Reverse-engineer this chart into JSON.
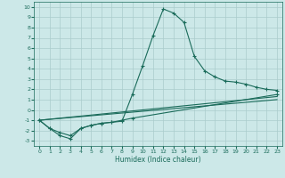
{
  "xlabel": "Humidex (Indice chaleur)",
  "bg_color": "#cce8e8",
  "grid_color": "#aacccc",
  "line_color": "#1a6b5a",
  "xlim": [
    -0.5,
    23.5
  ],
  "ylim": [
    -3.5,
    10.5
  ],
  "xticks": [
    0,
    1,
    2,
    3,
    4,
    5,
    6,
    7,
    8,
    9,
    10,
    11,
    12,
    13,
    14,
    15,
    16,
    17,
    18,
    19,
    20,
    21,
    22,
    23
  ],
  "yticks": [
    -3,
    -2,
    -1,
    0,
    1,
    2,
    3,
    4,
    5,
    6,
    7,
    8,
    9,
    10
  ],
  "series1": [
    [
      0,
      -1.0
    ],
    [
      1,
      -1.8
    ],
    [
      2,
      -2.5
    ],
    [
      3,
      -2.8
    ],
    [
      4,
      -1.8
    ],
    [
      5,
      -1.5
    ],
    [
      6,
      -1.3
    ],
    [
      7,
      -1.2
    ],
    [
      8,
      -1.1
    ],
    [
      9,
      1.5
    ],
    [
      10,
      4.3
    ],
    [
      11,
      7.2
    ],
    [
      12,
      9.8
    ],
    [
      13,
      9.4
    ],
    [
      14,
      8.5
    ],
    [
      15,
      5.2
    ],
    [
      16,
      3.8
    ],
    [
      17,
      3.2
    ],
    [
      18,
      2.8
    ],
    [
      19,
      2.7
    ],
    [
      20,
      2.5
    ],
    [
      21,
      2.2
    ],
    [
      22,
      2.0
    ],
    [
      23,
      1.9
    ]
  ],
  "series2": [
    [
      0,
      -1.0
    ],
    [
      1,
      -1.8
    ],
    [
      2,
      -2.2
    ],
    [
      3,
      -2.5
    ],
    [
      4,
      -1.8
    ],
    [
      5,
      -1.5
    ],
    [
      6,
      -1.3
    ],
    [
      7,
      -1.2
    ],
    [
      8,
      -1.0
    ],
    [
      9,
      -0.8
    ],
    [
      23,
      1.5
    ]
  ],
  "series3": [
    [
      0,
      -1.0
    ],
    [
      23,
      1.3
    ]
  ],
  "series4": [
    [
      0,
      -1.0
    ],
    [
      23,
      1.0
    ]
  ]
}
